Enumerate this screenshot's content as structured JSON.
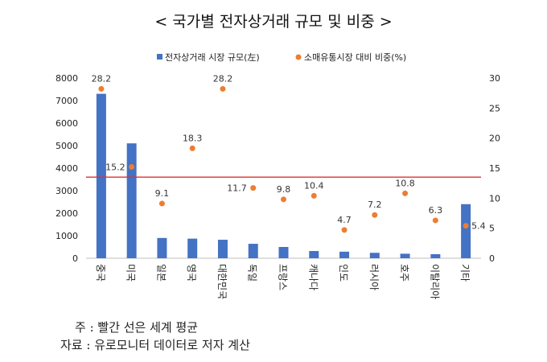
{
  "chart_data": {
    "type": "bar",
    "title": "< 국가별 전자상거래 규모 및 비중 >",
    "categories": [
      "중국",
      "미국",
      "일본",
      "영국",
      "대한민국",
      "독일",
      "프랑스",
      "캐나다",
      "인도",
      "러시아",
      "호주",
      "이탈리아",
      "기타"
    ],
    "series": [
      {
        "name": "전자상거래 시장 규모(左)",
        "type": "bar",
        "axis": "left",
        "color": "#4472C4",
        "values": [
          7300,
          5100,
          900,
          870,
          820,
          640,
          500,
          320,
          290,
          240,
          200,
          180,
          2400
        ]
      },
      {
        "name": "소매유통시장 대비 비중(%)",
        "type": "scatter",
        "axis": "right",
        "color": "#ED7D31",
        "values": [
          28.2,
          15.2,
          9.1,
          18.3,
          28.2,
          11.7,
          9.8,
          10.4,
          4.7,
          7.2,
          10.8,
          6.3,
          5.4
        ],
        "labels": [
          "28.2",
          "15.2",
          "9.1",
          "18.3",
          "28.2",
          "11.7",
          "9.8",
          "10.4",
          "4.7",
          "7.2",
          "10.8",
          "6.3",
          "5.4"
        ]
      }
    ],
    "y_left": {
      "lim": [
        0,
        8000
      ],
      "ticks": [
        "0",
        "1000",
        "2000",
        "3000",
        "4000",
        "5000",
        "6000",
        "7000",
        "8000"
      ]
    },
    "y_right": {
      "lim": [
        0,
        30
      ],
      "ticks": [
        "0",
        "5",
        "10",
        "15",
        "20",
        "25",
        "30"
      ]
    },
    "reference_line": {
      "axis": "right",
      "value": 13.5,
      "color": "#E03030"
    },
    "grid": false,
    "legend": "top"
  },
  "notes": {
    "line1": "주 : 빨간 선은 세계 평균",
    "line2": "자료 : 유로모니터 데이터로 저자 계산"
  }
}
